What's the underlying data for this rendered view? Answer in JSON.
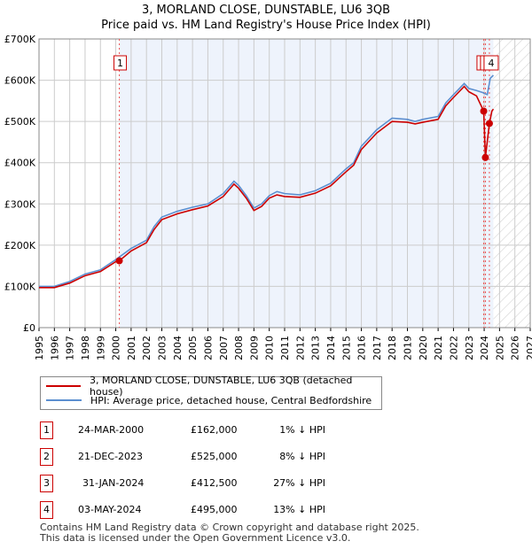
{
  "chart_data": {
    "type": "line",
    "title": "3, MORLAND CLOSE, DUNSTABLE, LU6 3QB",
    "subtitle": "Price paid vs. HM Land Registry's House Price Index (HPI)",
    "xlim": [
      1995,
      2027
    ],
    "ylim": [
      0,
      700000
    ],
    "x_ticks": [
      "1995",
      "1996",
      "1997",
      "1998",
      "1999",
      "2000",
      "2001",
      "2002",
      "2003",
      "2004",
      "2005",
      "2006",
      "2007",
      "2008",
      "2009",
      "2010",
      "2011",
      "2012",
      "2013",
      "2014",
      "2015",
      "2016",
      "2017",
      "2018",
      "2019",
      "2020",
      "2021",
      "2022",
      "2023",
      "2024",
      "2025",
      "2026",
      "2027"
    ],
    "y_ticks": [
      {
        "v": 0,
        "label": "£0"
      },
      {
        "v": 100000,
        "label": "£100K"
      },
      {
        "v": 200000,
        "label": "£200K"
      },
      {
        "v": 300000,
        "label": "£300K"
      },
      {
        "v": 400000,
        "label": "£400K"
      },
      {
        "v": 500000,
        "label": "£500K"
      },
      {
        "v": 600000,
        "label": "£600K"
      },
      {
        "v": 700000,
        "label": "£700K"
      }
    ],
    "grid": true,
    "series": [
      {
        "name": "HPI: Average price, detached house, Central Bedfordshire",
        "color": "#5b8fd0",
        "x": [
          1995,
          1996,
          1997,
          1998,
          1999,
          2000,
          2001,
          2002,
          2002.5,
          2003,
          2004,
          2005,
          2006,
          2007,
          2007.7,
          2008,
          2008.5,
          2009,
          2009.5,
          2010,
          2010.5,
          2011,
          2012,
          2013,
          2014,
          2015,
          2015.5,
          2016,
          2016.5,
          2017,
          2018,
          2019,
          2019.5,
          2020,
          2021,
          2021.5,
          2022,
          2022.7,
          2023,
          2023.5,
          2023.9,
          2024.2,
          2024.4,
          2024.6
        ],
        "y": [
          100000,
          100000,
          112000,
          130000,
          140000,
          165000,
          192000,
          212000,
          245000,
          268000,
          282000,
          292000,
          300000,
          325000,
          355000,
          345000,
          320000,
          290000,
          300000,
          320000,
          330000,
          325000,
          322000,
          332000,
          350000,
          385000,
          400000,
          440000,
          460000,
          480000,
          508000,
          505000,
          500000,
          505000,
          512000,
          545000,
          565000,
          592000,
          580000,
          575000,
          570000,
          565000,
          605000,
          612000
        ]
      },
      {
        "name": "3, MORLAND CLOSE, DUNSTABLE, LU6 3QB (detached house)",
        "color": "#cc0000",
        "x": [
          1995,
          1996,
          1997,
          1998,
          1999,
          2000,
          2000.23,
          2001,
          2002,
          2002.5,
          2003,
          2004,
          2005,
          2006,
          2007,
          2007.7,
          2008,
          2008.5,
          2009,
          2009.5,
          2010,
          2010.5,
          2011,
          2012,
          2013,
          2014,
          2015,
          2015.5,
          2016,
          2016.5,
          2017,
          2018,
          2019,
          2019.5,
          2020,
          2021,
          2021.5,
          2022,
          2022.7,
          2023,
          2023.5,
          2023.97,
          2024.08,
          2024.34,
          2024.5,
          2024.6
        ],
        "y": [
          97000,
          97000,
          108000,
          126000,
          136000,
          160000,
          162000,
          186000,
          206000,
          238000,
          262000,
          276000,
          286000,
          295000,
          318000,
          348000,
          338000,
          314000,
          284000,
          294000,
          314000,
          322000,
          318000,
          316000,
          326000,
          344000,
          378000,
          394000,
          432000,
          452000,
          472000,
          500000,
          498000,
          494000,
          498000,
          505000,
          538000,
          558000,
          585000,
          572000,
          562000,
          525000,
          412500,
          495000,
          525000,
          530000
        ]
      }
    ],
    "sales": [
      {
        "id": "1",
        "x": 2000.23,
        "date": "24-MAR-2000",
        "price": 162000,
        "price_label": "£162,000",
        "hpi": "1% ↓ HPI"
      },
      {
        "id": "2",
        "x": 2023.97,
        "date": "21-DEC-2023",
        "price": 525000,
        "price_label": "£525,000",
        "hpi": "8% ↓ HPI"
      },
      {
        "id": "3",
        "x": 2024.08,
        "date": "31-JAN-2024",
        "price": 412500,
        "price_label": "£412,500",
        "hpi": "27% ↓ HPI"
      },
      {
        "id": "4",
        "x": 2024.34,
        "date": "03-MAY-2024",
        "price": 495000,
        "price_label": "£495,000",
        "hpi": "13% ↓ HPI"
      }
    ],
    "forecast_start": 2024.6
  },
  "footer": {
    "line1": "Contains HM Land Registry data © Crown copyright and database right 2025.",
    "line2": "This data is licensed under the Open Government Licence v3.0."
  }
}
